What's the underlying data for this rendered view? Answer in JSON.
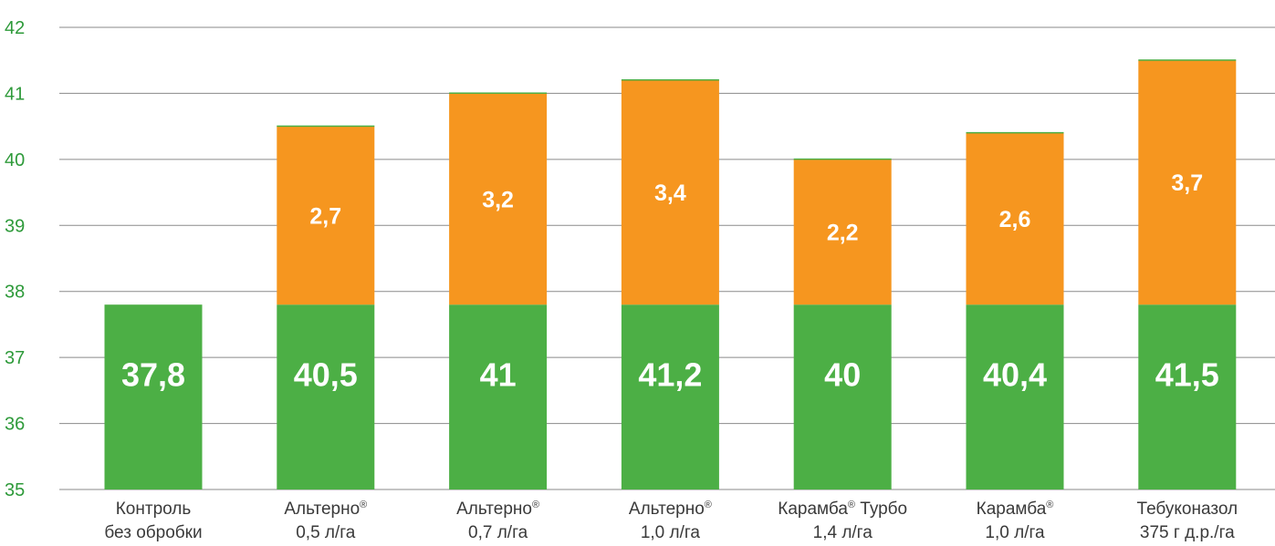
{
  "chart_data": {
    "type": "bar",
    "stacked": true,
    "ylim": [
      35,
      42
    ],
    "yticks": [
      "35",
      "36",
      "37",
      "38",
      "39",
      "40",
      "41",
      "42"
    ],
    "grid": true,
    "categories": [
      {
        "line1": "Контроль",
        "sup": "",
        "line1_tail": "",
        "line2": "без обробки"
      },
      {
        "line1": "Альтерно",
        "sup": "®",
        "line1_tail": "",
        "line2": "0,5 л/га"
      },
      {
        "line1": "Альтерно",
        "sup": "®",
        "line1_tail": "",
        "line2": "0,7 л/га"
      },
      {
        "line1": "Альтерно",
        "sup": "®",
        "line1_tail": "",
        "line2": "1,0 л/га"
      },
      {
        "line1": "Карамба",
        "sup": "®",
        "line1_tail": " Турбо",
        "line2": "1,4 л/га"
      },
      {
        "line1": "Карамба",
        "sup": "®",
        "line1_tail": "",
        "line2": "1,0 л/га"
      },
      {
        "line1": "Тебуконазол",
        "sup": "",
        "line1_tail": "",
        "line2": "375 г д.р./га"
      }
    ],
    "base": [
      37.8,
      37.8,
      37.8,
      37.8,
      37.8,
      37.8,
      37.8
    ],
    "increase": [
      0,
      2.7,
      3.2,
      3.4,
      2.2,
      2.6,
      3.7
    ],
    "totals": [
      37.8,
      40.5,
      41,
      41.2,
      40,
      40.4,
      41.5
    ],
    "total_labels": [
      "37,8",
      "40,5",
      "41",
      "41,2",
      "40",
      "40,4",
      "41,5"
    ],
    "increase_labels": [
      "",
      "2,7",
      "3,2",
      "3,4",
      "2,2",
      "2,6",
      "3,7"
    ],
    "colors": {
      "base": "#4caf45",
      "increase": "#f6961f",
      "axis_text": "#2e9a3a",
      "grid": "#8a8a8a"
    }
  }
}
